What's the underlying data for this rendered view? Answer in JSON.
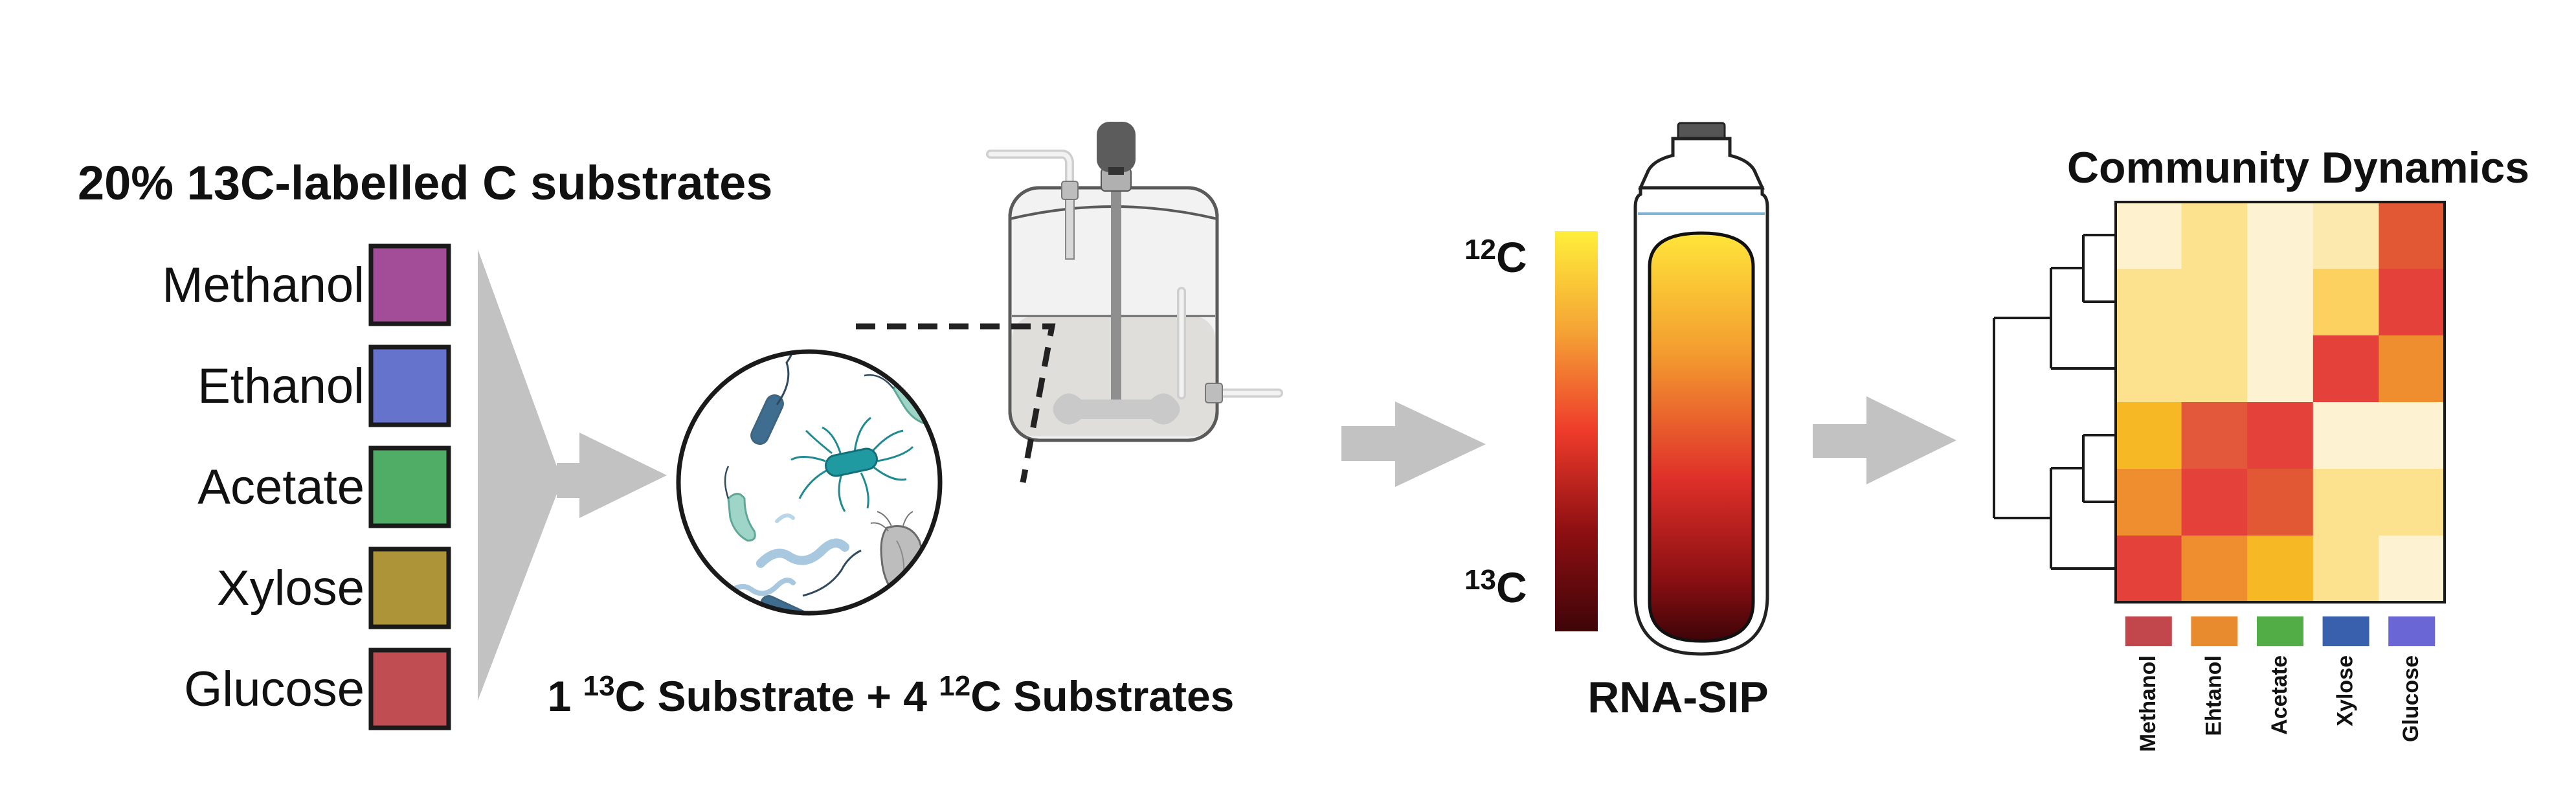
{
  "substrates": {
    "title": "20% 13C-labelled C substrates",
    "items": [
      {
        "label": "Methanol",
        "color": "#A34D99"
      },
      {
        "label": "Ethanol",
        "color": "#6673CC"
      },
      {
        "label": "Acetate",
        "color": "#4FAD66"
      },
      {
        "label": "Xylose",
        "color": "#AD9438"
      },
      {
        "label": "Glucose",
        "color": "#BF4D52"
      }
    ]
  },
  "incubation": {
    "caption_pre": "1 ",
    "caption_sup1": "13",
    "caption_mid": "C Substrate + 4 ",
    "caption_sup2": "12",
    "caption_post": "C Substrates"
  },
  "sip": {
    "top_sup": "12",
    "top_label": "C",
    "bottom_sup": "13",
    "bottom_label": "C",
    "gradient_colors": [
      "#FFEF3A",
      "#F5A335",
      "#EE3B2B",
      "#8E0F12",
      "#3F0508"
    ],
    "caption": "RNA-SIP"
  },
  "heatmap": {
    "title": "Community Dynamics",
    "columns": [
      {
        "label": "Methanol",
        "legend_color": "#C2474D"
      },
      {
        "label": "Ehtanol",
        "legend_color": "#E88B2E"
      },
      {
        "label": "Acetate",
        "legend_color": "#52AD47"
      },
      {
        "label": "Xylose",
        "legend_color": "#3860AD"
      },
      {
        "label": "Glucose",
        "legend_color": "#6B66D6"
      }
    ],
    "cells": [
      [
        "#FDF1CE",
        "#FCE18F",
        "#FDF3D3",
        "#FCE9AE",
        "#E35834"
      ],
      [
        "#FCE18F",
        "#FCE18F",
        "#FDF3D3",
        "#FCD15F",
        "#E3413A"
      ],
      [
        "#FCE18F",
        "#FCE18F",
        "#FDF3D3",
        "#E3413A",
        "#EE8E2F"
      ],
      [
        "#F7B826",
        "#E3573A",
        "#E3413A",
        "#FDF3D3",
        "#FDF3D3"
      ],
      [
        "#EE8E2F",
        "#E3413A",
        "#E35834",
        "#FCE18F",
        "#FCE18F"
      ],
      [
        "#E3413A",
        "#EE8E2F",
        "#F7B826",
        "#FCE18F",
        "#FDF3D3"
      ]
    ]
  }
}
